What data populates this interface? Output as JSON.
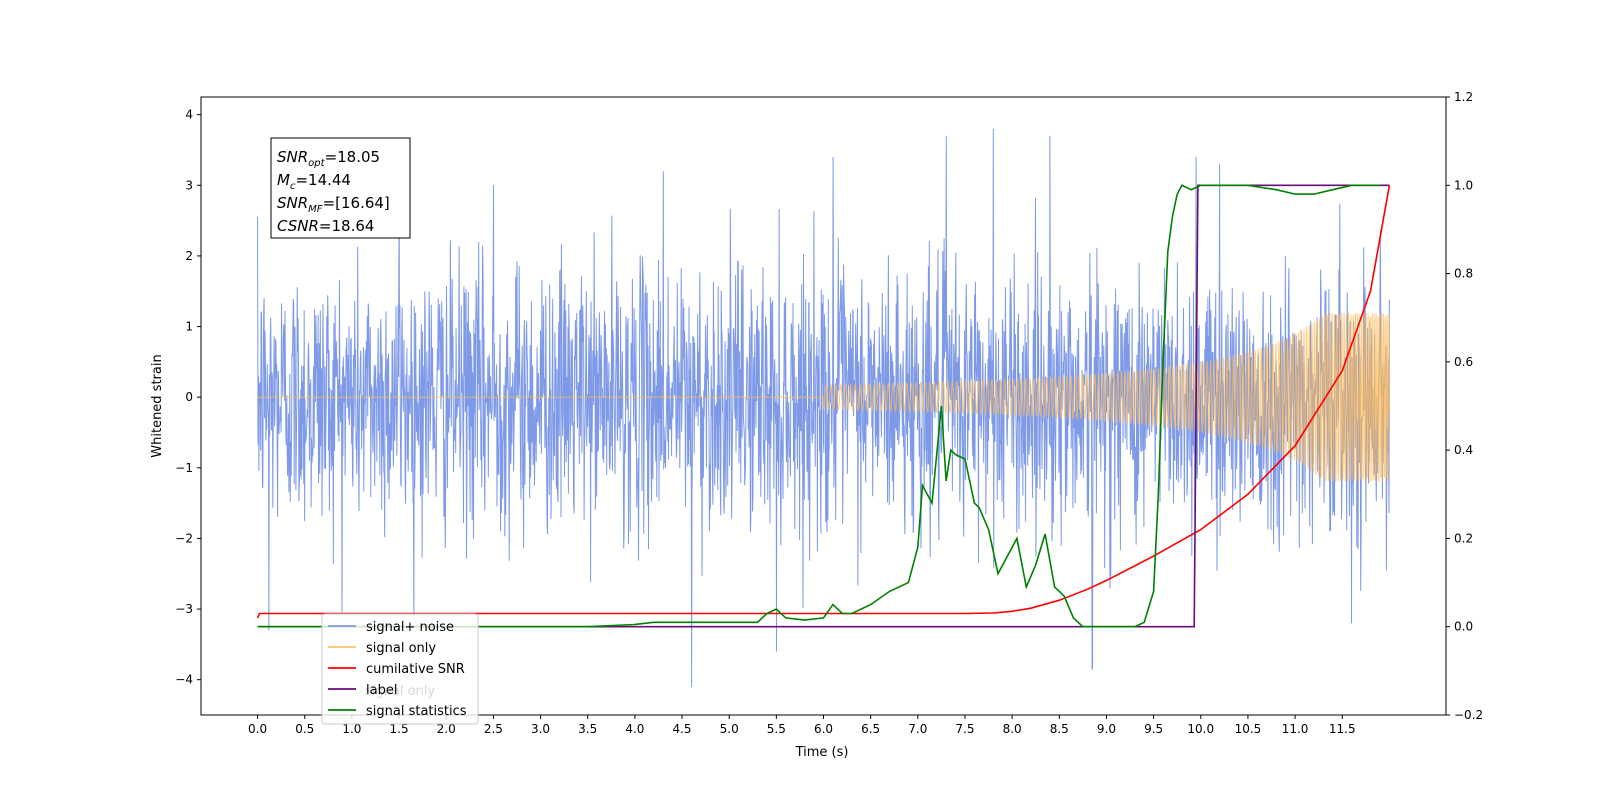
{
  "chart_data": {
    "type": "line",
    "xlabel": "Time (s)",
    "ylabel": "Whitened strain",
    "xlim": [
      -0.6,
      12.6
    ],
    "ylim": [
      -4.5,
      4.25
    ],
    "y2lim": [
      -0.2,
      1.2
    ],
    "x_ticks": [
      0.0,
      0.5,
      1.0,
      1.5,
      2.0,
      2.5,
      3.0,
      3.5,
      4.0,
      4.5,
      5.0,
      5.5,
      6.0,
      6.5,
      7.0,
      7.5,
      8.0,
      8.5,
      9.0,
      9.5,
      10.0,
      10.5,
      11.0,
      11.5
    ],
    "x_tick_labels": [
      "0.0",
      "0.5",
      "1.0",
      "1.5",
      "2.0",
      "2.5",
      "3.0",
      "3.5",
      "4.0",
      "4.5",
      "5.0",
      "5.5",
      "6.0",
      "6.5",
      "7.0",
      "7.5",
      "8.0",
      "8.5",
      "9.0",
      "9.5",
      "10.0",
      "10.5",
      "11.0",
      "11.5"
    ],
    "y_ticks": [
      -4,
      -3,
      -2,
      -1,
      0,
      1,
      2,
      3,
      4
    ],
    "y_tick_labels": [
      "−4",
      "−3",
      "−2",
      "−1",
      "0",
      "1",
      "2",
      "3",
      "4"
    ],
    "y2_ticks": [
      -0.2,
      0.0,
      0.2,
      0.4,
      0.6,
      0.8,
      1.0,
      1.2
    ],
    "y2_tick_labels": [
      "−0.2",
      "0.0",
      "0.2",
      "0.4",
      "0.6",
      "0.8",
      "1.0",
      "1.2"
    ],
    "grid": false,
    "legend_position": "bottom-left",
    "series": [
      {
        "name": "signal+ noise",
        "color": "#6f8ee6",
        "axis": "left",
        "style": "dense noisy trace, sd≈0.9, from x=0 to x=12",
        "spikes": [
          [
            0.12,
            -3.3
          ],
          [
            1.5,
            3.1
          ],
          [
            2.5,
            3.0
          ],
          [
            4.3,
            3.2
          ],
          [
            4.6,
            -4.1
          ],
          [
            5.5,
            -3.6
          ],
          [
            6.1,
            3.4
          ],
          [
            7.3,
            3.7
          ],
          [
            7.8,
            3.8
          ],
          [
            8.4,
            3.7
          ],
          [
            8.85,
            -3.85
          ],
          [
            9.95,
            3.4
          ],
          [
            10.2,
            3.3
          ],
          [
            11.6,
            -3.2
          ]
        ]
      },
      {
        "name": "signal only",
        "color": "#ffbb55",
        "axis": "left",
        "style": "chirp, flat near 0 then amplitude growing from ~7.5 s to ±1.2 at 12 s",
        "amplitude_end": 1.2
      },
      {
        "name": "cumilative SNR",
        "color": "#ff0000",
        "axis": "right",
        "x": [
          0.0,
          0.02,
          1.0,
          2.0,
          3.0,
          4.0,
          5.0,
          6.0,
          7.0,
          7.5,
          7.8,
          8.0,
          8.2,
          8.5,
          8.8,
          9.0,
          9.5,
          10.0,
          10.5,
          11.0,
          11.5,
          11.8,
          12.0
        ],
        "y": [
          0.02,
          0.03,
          0.03,
          0.03,
          0.03,
          0.03,
          0.03,
          0.03,
          0.03,
          0.03,
          0.031,
          0.035,
          0.042,
          0.06,
          0.085,
          0.105,
          0.16,
          0.22,
          0.3,
          0.41,
          0.58,
          0.76,
          1.0
        ]
      },
      {
        "name": "label",
        "color": "#6a0c7a",
        "axis": "right",
        "x": [
          0.0,
          9.93,
          9.97,
          12.0
        ],
        "y": [
          0.0,
          0.0,
          1.0,
          1.0
        ]
      },
      {
        "name": "signal statistics",
        "color": "#008000",
        "axis": "right",
        "x": [
          0.0,
          1.0,
          2.0,
          3.0,
          3.5,
          4.0,
          4.2,
          4.5,
          4.7,
          5.0,
          5.3,
          5.4,
          5.5,
          5.6,
          5.8,
          6.0,
          6.1,
          6.2,
          6.3,
          6.5,
          6.7,
          6.9,
          7.0,
          7.05,
          7.15,
          7.25,
          7.3,
          7.35,
          7.4,
          7.5,
          7.6,
          7.65,
          7.75,
          7.85,
          7.95,
          8.05,
          8.15,
          8.25,
          8.35,
          8.45,
          8.55,
          8.65,
          8.75,
          8.9,
          9.1,
          9.3,
          9.4,
          9.5,
          9.55,
          9.6,
          9.65,
          9.7,
          9.75,
          9.8,
          9.9,
          10.0,
          10.5,
          10.8,
          11.0,
          11.2,
          11.4,
          11.6,
          11.9
        ],
        "y": [
          0.0,
          0.0,
          0.0,
          0.0,
          0.0,
          0.005,
          0.01,
          0.01,
          0.01,
          0.01,
          0.01,
          0.03,
          0.04,
          0.02,
          0.015,
          0.02,
          0.05,
          0.03,
          0.03,
          0.05,
          0.08,
          0.1,
          0.18,
          0.32,
          0.28,
          0.5,
          0.33,
          0.4,
          0.39,
          0.38,
          0.28,
          0.27,
          0.22,
          0.12,
          0.16,
          0.2,
          0.09,
          0.14,
          0.21,
          0.09,
          0.07,
          0.02,
          0.0,
          0.0,
          0.0,
          0.0,
          0.01,
          0.08,
          0.3,
          0.6,
          0.85,
          0.93,
          0.98,
          1.0,
          0.99,
          1.0,
          1.0,
          0.99,
          0.98,
          0.98,
          0.99,
          1.0,
          1.0
        ]
      }
    ],
    "annotation": {
      "lines": [
        {
          "sym": "SNR",
          "sub": "opt",
          "val": "=18.05"
        },
        {
          "sym": "M",
          "sub": "c",
          "val": "=14.44"
        },
        {
          "sym": "SNR",
          "sub": "MF",
          "val": "=[16.64]"
        },
        {
          "sym": "CSNR",
          "sub": "",
          "val": "=18.64"
        }
      ]
    },
    "legend_overlay_text": "signal only"
  }
}
